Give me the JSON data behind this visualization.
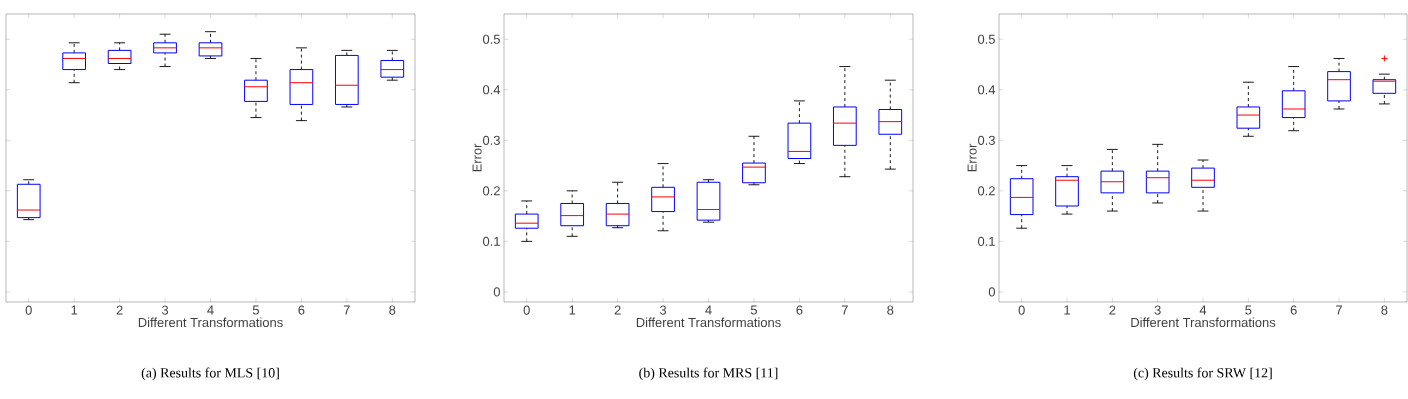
{
  "chart_data": [
    {
      "type": "box",
      "title": "(a) Results for MLS [10]",
      "xlabel": "Different Transformations",
      "color": "#0000ff",
      "tick_labels": "x",
      "categories": [
        "0",
        "1",
        "2",
        "3",
        "4",
        "5",
        "6",
        "7",
        "8"
      ],
      "ylim": [
        -0.02,
        0.55
      ],
      "yticks": [
        0,
        0.1,
        0.2,
        0.3,
        0.4,
        0.5
      ],
      "boxes": [
        {
          "low": 0.143,
          "q1": 0.147,
          "median": 0.162,
          "q3": 0.213,
          "high": 0.222
        },
        {
          "low": 0.414,
          "q1": 0.44,
          "median": 0.462,
          "q3": 0.473,
          "high": 0.493
        },
        {
          "low": 0.44,
          "q1": 0.452,
          "median": 0.462,
          "q3": 0.478,
          "high": 0.493
        },
        {
          "low": 0.446,
          "q1": 0.473,
          "median": 0.483,
          "q3": 0.493,
          "high": 0.51
        },
        {
          "low": 0.462,
          "q1": 0.467,
          "median": 0.483,
          "q3": 0.493,
          "high": 0.515
        },
        {
          "low": 0.345,
          "q1": 0.377,
          "median": 0.406,
          "q3": 0.419,
          "high": 0.462
        },
        {
          "low": 0.339,
          "q1": 0.371,
          "median": 0.414,
          "q3": 0.44,
          "high": 0.483
        },
        {
          "low": 0.366,
          "q1": 0.371,
          "median": 0.409,
          "q3": 0.468,
          "high": 0.478
        },
        {
          "low": 0.419,
          "q1": 0.425,
          "median": 0.44,
          "q3": 0.458,
          "high": 0.478
        }
      ]
    },
    {
      "type": "box",
      "title": "(b) Results for MRS [11]",
      "xlabel": "Different Transformations",
      "ylabel": "Error",
      "color": "#0000ff",
      "categories": [
        "0",
        "1",
        "2",
        "3",
        "4",
        "5",
        "6",
        "7",
        "8"
      ],
      "ylim": [
        -0.02,
        0.55
      ],
      "yticks": [
        0,
        0.1,
        0.2,
        0.3,
        0.4,
        0.5
      ],
      "boxes": [
        {
          "low": 0.1,
          "q1": 0.126,
          "median": 0.136,
          "q3": 0.154,
          "high": 0.18
        },
        {
          "low": 0.11,
          "q1": 0.131,
          "median": 0.151,
          "q3": 0.175,
          "high": 0.2
        },
        {
          "low": 0.127,
          "q1": 0.131,
          "median": 0.154,
          "q3": 0.175,
          "high": 0.217
        },
        {
          "low": 0.121,
          "q1": 0.159,
          "median": 0.188,
          "q3": 0.207,
          "high": 0.254
        },
        {
          "low": 0.138,
          "q1": 0.142,
          "median": 0.163,
          "q3": 0.217,
          "high": 0.222
        },
        {
          "low": 0.212,
          "q1": 0.216,
          "median": 0.247,
          "q3": 0.255,
          "high": 0.308
        },
        {
          "low": 0.254,
          "q1": 0.264,
          "median": 0.278,
          "q3": 0.334,
          "high": 0.378
        },
        {
          "low": 0.228,
          "q1": 0.29,
          "median": 0.334,
          "q3": 0.366,
          "high": 0.446
        },
        {
          "low": 0.243,
          "q1": 0.312,
          "median": 0.337,
          "q3": 0.361,
          "high": 0.419
        }
      ]
    },
    {
      "type": "box",
      "title": "(c) Results for SRW [12]",
      "xlabel": "Different Transformations",
      "ylabel": "Error",
      "color": "#0000ff",
      "categories": [
        "0",
        "1",
        "2",
        "3",
        "4",
        "5",
        "6",
        "7",
        "8"
      ],
      "ylim": [
        -0.02,
        0.55
      ],
      "yticks": [
        0,
        0.1,
        0.2,
        0.3,
        0.4,
        0.5
      ],
      "boxes": [
        {
          "low": 0.126,
          "q1": 0.153,
          "median": 0.187,
          "q3": 0.224,
          "high": 0.25
        },
        {
          "low": 0.154,
          "q1": 0.17,
          "median": 0.221,
          "q3": 0.228,
          "high": 0.25
        },
        {
          "low": 0.16,
          "q1": 0.196,
          "median": 0.218,
          "q3": 0.239,
          "high": 0.282
        },
        {
          "low": 0.176,
          "q1": 0.196,
          "median": 0.226,
          "q3": 0.239,
          "high": 0.292
        },
        {
          "low": 0.16,
          "q1": 0.207,
          "median": 0.221,
          "q3": 0.245,
          "high": 0.261
        },
        {
          "low": 0.308,
          "q1": 0.324,
          "median": 0.35,
          "q3": 0.366,
          "high": 0.415
        },
        {
          "low": 0.319,
          "q1": 0.345,
          "median": 0.362,
          "q3": 0.398,
          "high": 0.446
        },
        {
          "low": 0.362,
          "q1": 0.378,
          "median": 0.42,
          "q3": 0.436,
          "high": 0.462
        },
        {
          "low": 0.372,
          "q1": 0.393,
          "median": 0.417,
          "q3": 0.42,
          "high": 0.431,
          "outliers": [
            0.462
          ]
        }
      ]
    }
  ]
}
